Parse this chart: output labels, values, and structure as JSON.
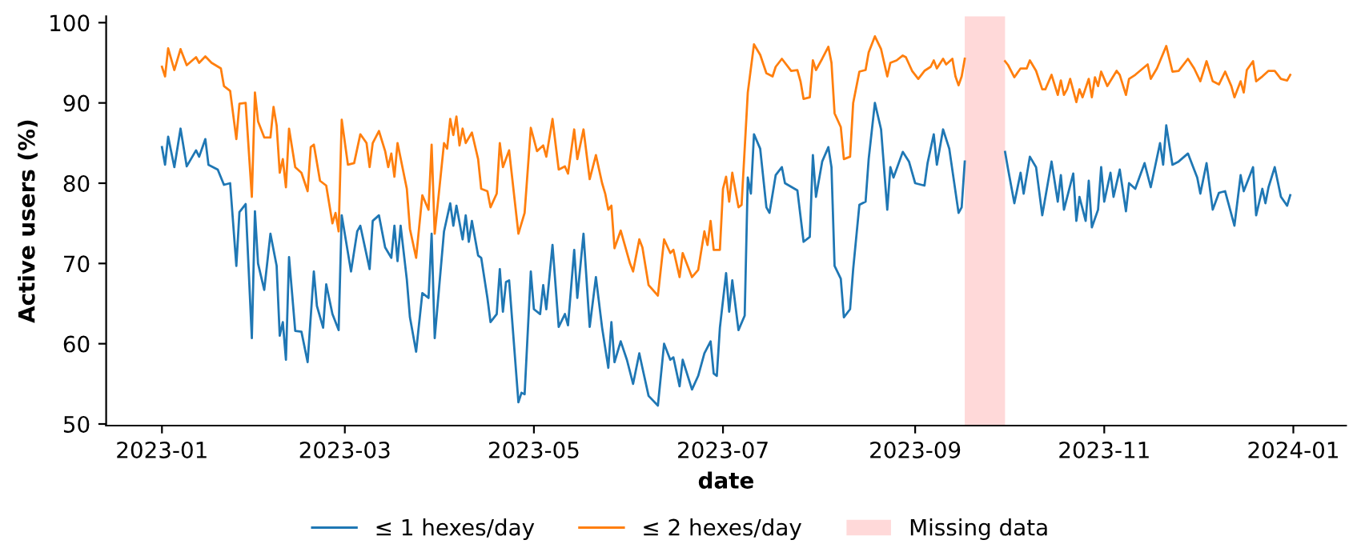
{
  "chart_data": {
    "type": "line",
    "xlabel": "date",
    "ylabel": "Active users (%)",
    "xlim": [
      "2022-12-14",
      "2024-01-18"
    ],
    "ylim": [
      49.8,
      100.8
    ],
    "xticks": [
      {
        "value": "2023-01-01",
        "label": "2023-01"
      },
      {
        "value": "2023-03-01",
        "label": "2023-03"
      },
      {
        "value": "2023-05-01",
        "label": "2023-05"
      },
      {
        "value": "2023-07-01",
        "label": "2023-07"
      },
      {
        "value": "2023-09-01",
        "label": "2023-09"
      },
      {
        "value": "2023-11-01",
        "label": "2023-11"
      },
      {
        "value": "2024-01-01",
        "label": "2024-01"
      }
    ],
    "yticks": [
      50,
      60,
      70,
      80,
      90,
      100
    ],
    "grid": false,
    "legend": "bottom",
    "marker": "none",
    "line_style": "solid",
    "bands": [
      {
        "axis": "x",
        "from": "2023-09-17",
        "to": "2023-09-30",
        "label": "Missing data",
        "color": "#ffd9d9"
      }
    ],
    "series": [
      {
        "name": "≤ 1 hexes/day",
        "color": "#1f77b4",
        "x": [
          "2023-01-01",
          "2023-01-02",
          "2023-01-03",
          "2023-01-05",
          "2023-01-07",
          "2023-01-09",
          "2023-01-12",
          "2023-01-13",
          "2023-01-15",
          "2023-01-16",
          "2023-01-19",
          "2023-01-21",
          "2023-01-23",
          "2023-01-25",
          "2023-01-26",
          "2023-01-28",
          "2023-01-30",
          "2023-01-31",
          "2023-02-01",
          "2023-02-03",
          "2023-02-05",
          "2023-02-07",
          "2023-02-08",
          "2023-02-09",
          "2023-02-10",
          "2023-02-11",
          "2023-02-13",
          "2023-02-15",
          "2023-02-17",
          "2023-02-19",
          "2023-02-20",
          "2023-02-22",
          "2023-02-23",
          "2023-02-25",
          "2023-02-27",
          "2023-02-28",
          "2023-03-03",
          "2023-03-05",
          "2023-03-06",
          "2023-03-09",
          "2023-03-10",
          "2023-03-12",
          "2023-03-14",
          "2023-03-16",
          "2023-03-17",
          "2023-03-18",
          "2023-03-19",
          "2023-03-21",
          "2023-03-22",
          "2023-03-24",
          "2023-03-26",
          "2023-03-28",
          "2023-03-29",
          "2023-03-30",
          "2023-04-02",
          "2023-04-04",
          "2023-04-05",
          "2023-04-06",
          "2023-04-08",
          "2023-04-09",
          "2023-04-10",
          "2023-04-11",
          "2023-04-13",
          "2023-04-14",
          "2023-04-16",
          "2023-04-17",
          "2023-04-19",
          "2023-04-20",
          "2023-04-21",
          "2023-04-22",
          "2023-04-23",
          "2023-04-26",
          "2023-04-27",
          "2023-04-28",
          "2023-04-30",
          "2023-05-01",
          "2023-05-03",
          "2023-05-04",
          "2023-05-05",
          "2023-05-07",
          "2023-05-09",
          "2023-05-11",
          "2023-05-12",
          "2023-05-14",
          "2023-05-15",
          "2023-05-17",
          "2023-05-19",
          "2023-05-21",
          "2023-05-23",
          "2023-05-25",
          "2023-05-26",
          "2023-05-27",
          "2023-05-29",
          "2023-05-31",
          "2023-06-02",
          "2023-06-04",
          "2023-06-05",
          "2023-06-07",
          "2023-06-10",
          "2023-06-12",
          "2023-06-14",
          "2023-06-15",
          "2023-06-17",
          "2023-06-18",
          "2023-06-21",
          "2023-06-23",
          "2023-06-25",
          "2023-06-27",
          "2023-06-28",
          "2023-06-29",
          "2023-06-30",
          "2023-07-02",
          "2023-07-03",
          "2023-07-04",
          "2023-07-06",
          "2023-07-08",
          "2023-07-09",
          "2023-07-10",
          "2023-07-11",
          "2023-07-13",
          "2023-07-15",
          "2023-07-16",
          "2023-07-18",
          "2023-07-20",
          "2023-07-21",
          "2023-07-25",
          "2023-07-27",
          "2023-07-29",
          "2023-07-30",
          "2023-07-31",
          "2023-08-02",
          "2023-08-04",
          "2023-08-05",
          "2023-08-06",
          "2023-08-08",
          "2023-08-09",
          "2023-08-11",
          "2023-08-12",
          "2023-08-14",
          "2023-08-16",
          "2023-08-17",
          "2023-08-19",
          "2023-08-21",
          "2023-08-23",
          "2023-08-24",
          "2023-08-25",
          "2023-08-28",
          "2023-08-30",
          "2023-09-01",
          "2023-09-04",
          "2023-09-05",
          "2023-09-07",
          "2023-09-08",
          "2023-09-10",
          "2023-09-12",
          "2023-09-15",
          "2023-09-16",
          "2023-09-17",
          "2023-09-24",
          "2023-09-30",
          "2023-10-01",
          "2023-10-03",
          "2023-10-05",
          "2023-10-06",
          "2023-10-08",
          "2023-10-10",
          "2023-10-12",
          "2023-10-15",
          "2023-10-17",
          "2023-10-18",
          "2023-10-19",
          "2023-10-22",
          "2023-10-23",
          "2023-10-24",
          "2023-10-26",
          "2023-10-27",
          "2023-10-28",
          "2023-10-30",
          "2023-10-31",
          "2023-11-01",
          "2023-11-03",
          "2023-11-04",
          "2023-11-06",
          "2023-11-08",
          "2023-11-09",
          "2023-11-11",
          "2023-11-14",
          "2023-11-16",
          "2023-11-19",
          "2023-11-20",
          "2023-11-21",
          "2023-11-23",
          "2023-11-25",
          "2023-11-28",
          "2023-11-30",
          "2023-12-01",
          "2023-12-02",
          "2023-12-04",
          "2023-12-06",
          "2023-12-08",
          "2023-12-10",
          "2023-12-13",
          "2023-12-15",
          "2023-12-16",
          "2023-12-19",
          "2023-12-20",
          "2023-12-22",
          "2023-12-23",
          "2023-12-24",
          "2023-12-26",
          "2023-12-28",
          "2023-12-30",
          "2023-12-31"
        ],
        "values": [
          84.5,
          82.3,
          85.8,
          82,
          86.8,
          82.1,
          84.1,
          83.3,
          85.5,
          82.3,
          81.7,
          79.8,
          80,
          69.7,
          76.4,
          77.4,
          60.7,
          76.5,
          70,
          66.7,
          73.7,
          69.7,
          61,
          62.7,
          58,
          70.8,
          61.6,
          61.5,
          57.7,
          69,
          64.7,
          62,
          67.4,
          63.7,
          61.7,
          76,
          69,
          74,
          74.7,
          69.3,
          75.3,
          76,
          72,
          70.7,
          74.7,
          70.3,
          74.7,
          68,
          63.3,
          59,
          66.3,
          65.7,
          73.7,
          60.7,
          74,
          77.5,
          74.7,
          77.2,
          73,
          76,
          72.7,
          75.3,
          71,
          70.7,
          65.7,
          62.7,
          63.7,
          69.3,
          64,
          67.7,
          67.9,
          52.7,
          53.9,
          53.7,
          69,
          64.3,
          63.7,
          67.3,
          64.3,
          72.3,
          62.1,
          63.7,
          62.3,
          71.7,
          65.7,
          73.7,
          62.1,
          68.3,
          62,
          57,
          62.7,
          57.7,
          60.3,
          58,
          55,
          58.8,
          57,
          53.5,
          52.3,
          60,
          58,
          58.3,
          54.7,
          58,
          54.3,
          56,
          58.8,
          60.3,
          56.3,
          56,
          62,
          68.8,
          64,
          67.9,
          61.7,
          63.5,
          80.7,
          78.7,
          86.1,
          84.3,
          77,
          76.3,
          81,
          82,
          80,
          79.1,
          72.7,
          73.3,
          83.5,
          78.3,
          82.7,
          84.5,
          82,
          69.7,
          68.1,
          63.3,
          64.3,
          69.3,
          77.3,
          77.7,
          83,
          90,
          86.7,
          76.7,
          82,
          80.7,
          83.9,
          82.7,
          80,
          79.7,
          82.5,
          86.1,
          82.3,
          86.7,
          84.3,
          76.3,
          77,
          82.7,
          null,
          83.9,
          81.7,
          77.5,
          81.3,
          78.7,
          83.3,
          82,
          76,
          82.7,
          77.7,
          81,
          76.7,
          81.2,
          75.3,
          78.3,
          75.3,
          80.3,
          74.5,
          76.7,
          82,
          77.7,
          81.3,
          78.3,
          81.7,
          76.5,
          80,
          79.3,
          82.5,
          79.5,
          85,
          82.3,
          87.2,
          82.3,
          82.7,
          83.7,
          81.7,
          80.7,
          78.7,
          82.5,
          76.7,
          78.8,
          79,
          74.7,
          81,
          79,
          82,
          76,
          79.3,
          77.5,
          79.5,
          82,
          78.3,
          77.2,
          78.5
        ]
      },
      {
        "name": "≤ 2 hexes/day",
        "color": "#ff7f0e",
        "x": [
          "2023-01-01",
          "2023-01-02",
          "2023-01-03",
          "2023-01-05",
          "2023-01-07",
          "2023-01-09",
          "2023-01-12",
          "2023-01-13",
          "2023-01-15",
          "2023-01-17",
          "2023-01-20",
          "2023-01-21",
          "2023-01-23",
          "2023-01-25",
          "2023-01-26",
          "2023-01-28",
          "2023-01-30",
          "2023-01-31",
          "2023-02-01",
          "2023-02-03",
          "2023-02-05",
          "2023-02-06",
          "2023-02-07",
          "2023-02-08",
          "2023-02-09",
          "2023-02-10",
          "2023-02-11",
          "2023-02-13",
          "2023-02-15",
          "2023-02-17",
          "2023-02-18",
          "2023-02-19",
          "2023-02-21",
          "2023-02-23",
          "2023-02-25",
          "2023-02-26",
          "2023-02-27",
          "2023-02-28",
          "2023-03-02",
          "2023-03-04",
          "2023-03-06",
          "2023-03-08",
          "2023-03-09",
          "2023-03-10",
          "2023-03-12",
          "2023-03-14",
          "2023-03-15",
          "2023-03-16",
          "2023-03-17",
          "2023-03-18",
          "2023-03-21",
          "2023-03-22",
          "2023-03-24",
          "2023-03-26",
          "2023-03-28",
          "2023-03-29",
          "2023-03-30",
          "2023-04-02",
          "2023-04-03",
          "2023-04-04",
          "2023-04-05",
          "2023-04-06",
          "2023-04-07",
          "2023-04-08",
          "2023-04-09",
          "2023-04-11",
          "2023-04-13",
          "2023-04-14",
          "2023-04-16",
          "2023-04-17",
          "2023-04-19",
          "2023-04-20",
          "2023-04-21",
          "2023-04-23",
          "2023-04-26",
          "2023-04-28",
          "2023-04-30",
          "2023-05-02",
          "2023-05-04",
          "2023-05-05",
          "2023-05-07",
          "2023-05-09",
          "2023-05-11",
          "2023-05-12",
          "2023-05-14",
          "2023-05-15",
          "2023-05-17",
          "2023-05-19",
          "2023-05-21",
          "2023-05-23",
          "2023-05-24",
          "2023-05-25",
          "2023-05-26",
          "2023-05-27",
          "2023-05-29",
          "2023-06-01",
          "2023-06-02",
          "2023-06-04",
          "2023-06-05",
          "2023-06-07",
          "2023-06-10",
          "2023-06-12",
          "2023-06-14",
          "2023-06-15",
          "2023-06-17",
          "2023-06-18",
          "2023-06-21",
          "2023-06-23",
          "2023-06-25",
          "2023-06-26",
          "2023-06-27",
          "2023-06-28",
          "2023-06-30",
          "2023-07-01",
          "2023-07-02",
          "2023-07-03",
          "2023-07-04",
          "2023-07-06",
          "2023-07-07",
          "2023-07-09",
          "2023-07-11",
          "2023-07-13",
          "2023-07-15",
          "2023-07-17",
          "2023-07-18",
          "2023-07-20",
          "2023-07-23",
          "2023-07-25",
          "2023-07-26",
          "2023-07-27",
          "2023-07-29",
          "2023-07-30",
          "2023-07-31",
          "2023-08-02",
          "2023-08-04",
          "2023-08-05",
          "2023-08-06",
          "2023-08-08",
          "2023-08-09",
          "2023-08-11",
          "2023-08-12",
          "2023-08-14",
          "2023-08-16",
          "2023-08-17",
          "2023-08-19",
          "2023-08-21",
          "2023-08-23",
          "2023-08-24",
          "2023-08-26",
          "2023-08-28",
          "2023-08-29",
          "2023-08-31",
          "2023-09-02",
          "2023-09-04",
          "2023-09-06",
          "2023-09-07",
          "2023-09-08",
          "2023-09-10",
          "2023-09-11",
          "2023-09-13",
          "2023-09-14",
          "2023-09-15",
          "2023-09-16",
          "2023-09-17",
          "2023-09-24",
          "2023-09-30",
          "2023-10-01",
          "2023-10-03",
          "2023-10-05",
          "2023-10-07",
          "2023-10-08",
          "2023-10-10",
          "2023-10-12",
          "2023-10-13",
          "2023-10-15",
          "2023-10-17",
          "2023-10-18",
          "2023-10-19",
          "2023-10-20",
          "2023-10-21",
          "2023-10-23",
          "2023-10-24",
          "2023-10-25",
          "2023-10-27",
          "2023-10-28",
          "2023-10-29",
          "2023-10-30",
          "2023-10-31",
          "2023-11-02",
          "2023-11-05",
          "2023-11-06",
          "2023-11-08",
          "2023-11-09",
          "2023-11-11",
          "2023-11-15",
          "2023-11-16",
          "2023-11-18",
          "2023-11-21",
          "2023-11-23",
          "2023-11-25",
          "2023-11-28",
          "2023-11-30",
          "2023-12-02",
          "2023-12-04",
          "2023-12-06",
          "2023-12-08",
          "2023-12-10",
          "2023-12-12",
          "2023-12-13",
          "2023-12-15",
          "2023-12-16",
          "2023-12-17",
          "2023-12-19",
          "2023-12-20",
          "2023-12-22",
          "2023-12-24",
          "2023-12-26",
          "2023-12-28",
          "2023-12-30",
          "2023-12-31"
        ],
        "values": [
          94.5,
          93.3,
          96.8,
          94.1,
          96.7,
          94.7,
          95.7,
          95,
          95.8,
          95,
          94.3,
          92.1,
          91.5,
          85.5,
          89.9,
          90,
          78.3,
          91.3,
          87.7,
          85.7,
          85.7,
          89.5,
          87.2,
          81.3,
          83,
          79.5,
          86.8,
          82,
          81.3,
          79,
          84.5,
          84.8,
          80.3,
          79.7,
          75,
          76.3,
          74,
          87.9,
          82.3,
          82.5,
          86.1,
          85,
          82,
          85,
          86.5,
          84,
          82,
          83.7,
          80.8,
          85,
          79.3,
          74.3,
          70.7,
          78.5,
          76.7,
          84.8,
          73.7,
          85,
          84.3,
          88,
          86,
          88.3,
          84.7,
          86.8,
          85,
          86.3,
          83,
          79.3,
          79,
          77,
          78.7,
          85,
          82,
          84.1,
          73.7,
          76.3,
          86.9,
          84,
          84.7,
          83.3,
          88,
          81.7,
          82.1,
          81.2,
          86.7,
          83,
          86.7,
          80.5,
          83.5,
          80,
          78.7,
          76.7,
          77.2,
          71.9,
          74.1,
          70,
          69,
          73,
          72,
          67.3,
          66,
          73,
          71.3,
          71.7,
          68.3,
          71.3,
          68.3,
          69.2,
          74,
          72.3,
          75.3,
          71.7,
          71.7,
          79.3,
          80.8,
          77.7,
          81.3,
          77,
          77.3,
          91.3,
          97.3,
          96,
          93.7,
          93.3,
          94.5,
          95.5,
          94,
          94.1,
          92.7,
          90.5,
          90.7,
          95.3,
          94.1,
          95.5,
          97,
          95,
          88.7,
          87,
          83,
          83.3,
          90,
          93.9,
          94.1,
          96.3,
          98.3,
          96.7,
          93.3,
          95,
          95.3,
          95.9,
          95.7,
          94,
          93,
          94,
          94.5,
          95.3,
          94.3,
          95.5,
          94.8,
          95.5,
          93.3,
          92.2,
          93.3,
          95.5,
          null,
          95.2,
          94.7,
          93.2,
          94.3,
          94.3,
          95.3,
          94,
          91.7,
          91.7,
          93.5,
          91,
          92.8,
          91,
          91.7,
          93,
          90.1,
          91.7,
          90.7,
          93,
          90.7,
          93.2,
          92.1,
          93.9,
          92.1,
          94,
          93.5,
          91,
          93,
          93.5,
          94.8,
          93,
          94.3,
          97.1,
          93.9,
          94,
          95.5,
          94.3,
          92.7,
          95.2,
          92.7,
          92.3,
          93.9,
          92.1,
          90.7,
          92.7,
          91.3,
          94.1,
          95.2,
          92.7,
          93.3,
          94,
          94,
          93,
          92.8,
          93.5
        ]
      }
    ]
  }
}
